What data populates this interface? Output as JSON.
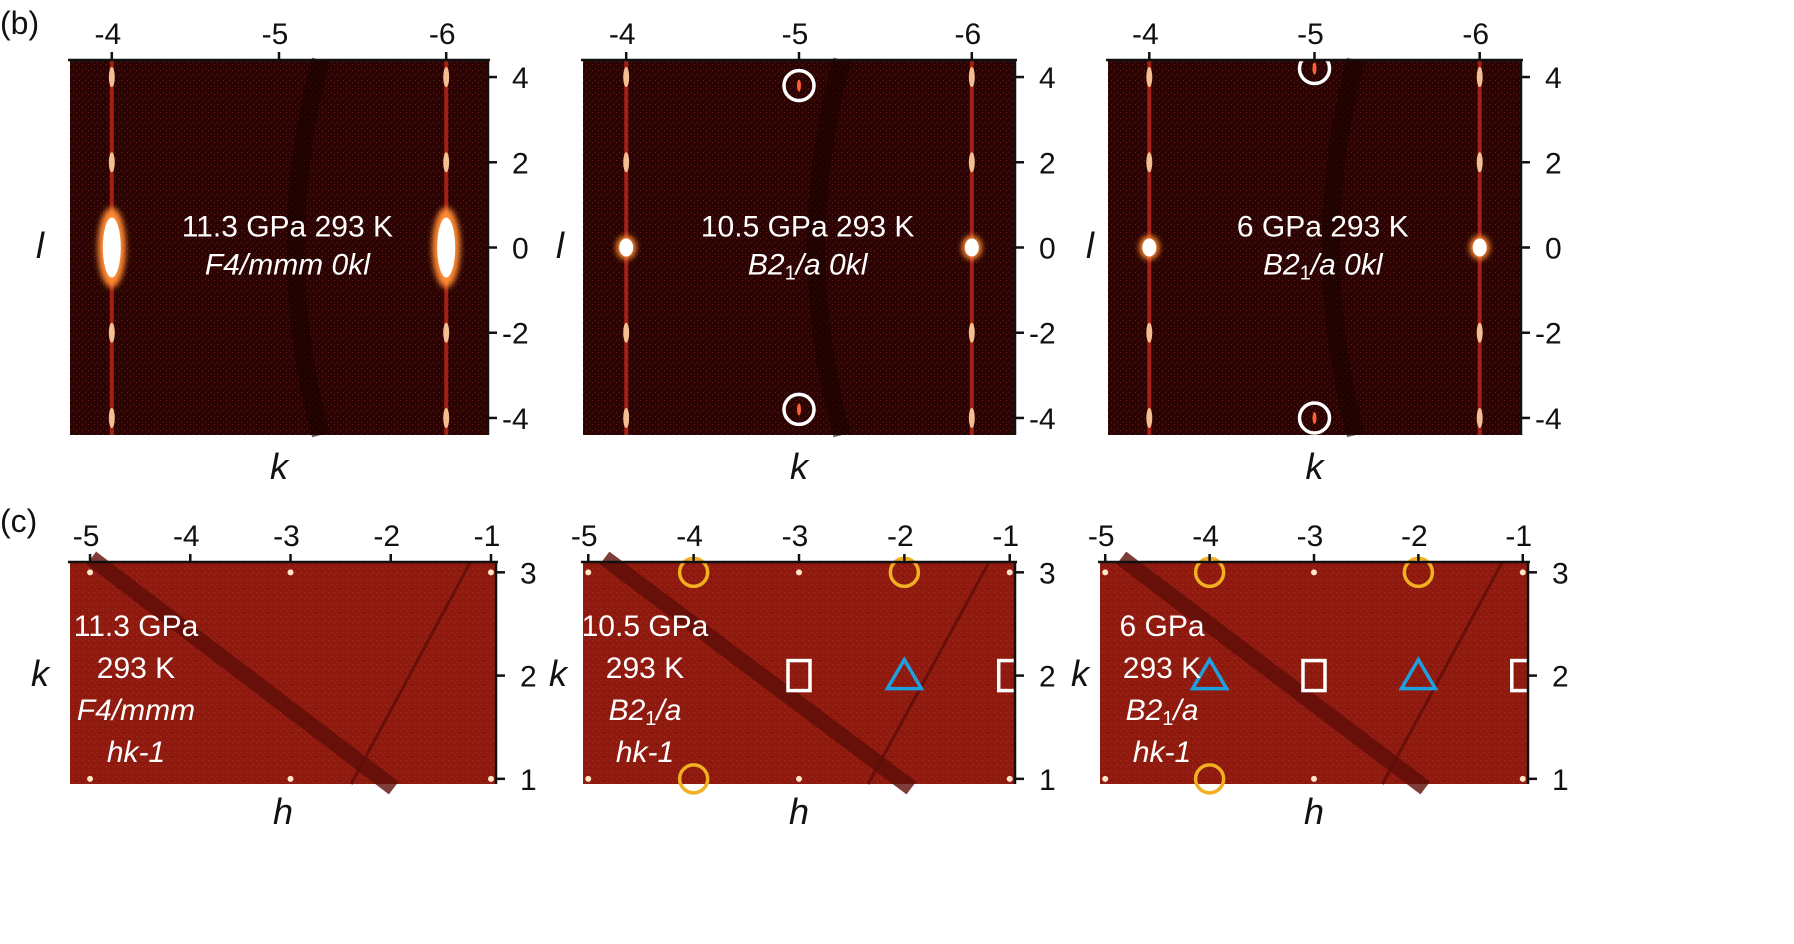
{
  "figure": {
    "panel_b_label": "(b)",
    "panel_c_label": "(c)",
    "colors": {
      "map_dark": "#2a0302",
      "map_red": "#8f1a10",
      "peak": "#ffffff",
      "circle_b": "#ffffff",
      "circle_orange": "#f0b020",
      "triangle_blue": "#1ea0e0",
      "square_white": "#ffffff"
    }
  },
  "chart_data": [
    {
      "type": "heatmap",
      "id": "b1",
      "xlabel": "k",
      "ylabel": "l",
      "show_left_label": true,
      "top_ticks": [
        "-4",
        "-5",
        "-6"
      ],
      "top_tick_values": [
        -4,
        -5,
        -6
      ],
      "xlim": [
        -3.75,
        -6.25
      ],
      "right_ticks": [
        "4",
        "2",
        "0",
        "-2",
        "-4"
      ],
      "right_tick_values": [
        4,
        2,
        0,
        -2,
        -4
      ],
      "ylim": [
        4.4,
        -4.4
      ],
      "annotation": [
        [
          {
            "t": "11.3 GPa 293 K",
            "i": false
          }
        ],
        [
          {
            "t": "F4/mmm 0kl",
            "i": true
          }
        ]
      ],
      "circles": []
    },
    {
      "type": "heatmap",
      "id": "b2",
      "xlabel": "k",
      "ylabel": "l",
      "show_left_label": true,
      "top_ticks": [
        "-4",
        "-5",
        "-6"
      ],
      "top_tick_values": [
        -4,
        -5,
        -6
      ],
      "xlim": [
        -3.75,
        -6.25
      ],
      "right_ticks": [
        "4",
        "2",
        "0",
        "-2",
        "-4"
      ],
      "right_tick_values": [
        4,
        2,
        0,
        -2,
        -4
      ],
      "ylim": [
        4.4,
        -4.4
      ],
      "annotation": [
        [
          {
            "t": "10.5 GPa 293 K",
            "i": false
          }
        ],
        [
          {
            "t": "B2",
            "i": true
          },
          {
            "t": "1",
            "i": false,
            "sub": true
          },
          {
            "t": "/a 0kl",
            "i": true
          }
        ]
      ],
      "circles": [
        {
          "x": -5,
          "y": 3.8
        },
        {
          "x": -5,
          "y": -3.8
        }
      ]
    },
    {
      "type": "heatmap",
      "id": "b3",
      "xlabel": "k",
      "ylabel": "l",
      "show_left_label": true,
      "top_ticks": [
        "-4",
        "-5",
        "-6"
      ],
      "top_tick_values": [
        -4,
        -5,
        -6
      ],
      "xlim": [
        -3.75,
        -6.25
      ],
      "right_ticks": [
        "4",
        "2",
        "0",
        "-2",
        "-4"
      ],
      "right_tick_values": [
        4,
        2,
        0,
        -2,
        -4
      ],
      "ylim": [
        4.4,
        -4.4
      ],
      "annotation": [
        [
          {
            "t": "6 GPa 293 K",
            "i": false
          }
        ],
        [
          {
            "t": "B2",
            "i": true
          },
          {
            "t": "1",
            "i": false,
            "sub": true
          },
          {
            "t": "/a 0kl",
            "i": true
          }
        ]
      ],
      "circles": [
        {
          "x": -5,
          "y": 4.2
        },
        {
          "x": -5,
          "y": -4.0
        }
      ]
    },
    {
      "type": "heatmap",
      "id": "c1",
      "xlabel": "h",
      "ylabel": "k",
      "top_ticks": [
        "-5",
        "-4",
        "-3",
        "-2",
        "-1"
      ],
      "top_tick_values": [
        -5,
        -4,
        -3,
        -2,
        -1
      ],
      "xlim": [
        -5.2,
        -0.95
      ],
      "right_ticks": [
        "3",
        "2",
        "1"
      ],
      "right_tick_values": [
        3,
        2,
        1
      ],
      "ylim": [
        3.1,
        0.95
      ],
      "annotation": [
        [
          {
            "t": "11.3 GPa",
            "i": false
          }
        ],
        [
          {
            "t": "293 K",
            "i": false
          }
        ],
        [
          {
            "t": "F4/mmm",
            "i": true
          }
        ],
        [
          {
            "t": "hk-1",
            "i": true
          }
        ]
      ],
      "peaks": [
        {
          "x": -5,
          "y": 3
        },
        {
          "x": -3,
          "y": 3
        },
        {
          "x": -1,
          "y": 3
        },
        {
          "x": -5,
          "y": 1
        },
        {
          "x": -3,
          "y": 1
        },
        {
          "x": -1,
          "y": 1
        }
      ],
      "circles": [],
      "squares": [],
      "triangles": []
    },
    {
      "type": "heatmap",
      "id": "c2",
      "xlabel": "h",
      "ylabel": "k",
      "top_ticks": [
        "-5",
        "-4",
        "-3",
        "-2",
        "-1"
      ],
      "top_tick_values": [
        -5,
        -4,
        -3,
        -2,
        -1
      ],
      "xlim": [
        -5.05,
        -0.95
      ],
      "right_ticks": [
        "3",
        "2",
        "1"
      ],
      "right_tick_values": [
        3,
        2,
        1
      ],
      "ylim": [
        3.1,
        0.95
      ],
      "annotation": [
        [
          {
            "t": "10.5 GPa",
            "i": false
          }
        ],
        [
          {
            "t": "293 K",
            "i": false
          }
        ],
        [
          {
            "t": "B2",
            "i": true
          },
          {
            "t": "1",
            "i": false,
            "sub": true
          },
          {
            "t": "/a",
            "i": true
          }
        ],
        [
          {
            "t": "hk-1",
            "i": true
          }
        ]
      ],
      "peaks": [
        {
          "x": -5,
          "y": 3
        },
        {
          "x": -3,
          "y": 3
        },
        {
          "x": -1,
          "y": 3
        },
        {
          "x": -5,
          "y": 1
        },
        {
          "x": -3,
          "y": 1
        },
        {
          "x": -1,
          "y": 1
        }
      ],
      "circles": [
        {
          "x": -4,
          "y": 3
        },
        {
          "x": -2,
          "y": 3
        },
        {
          "x": -4,
          "y": 1
        }
      ],
      "squares": [
        {
          "x": -3,
          "y": 2
        },
        {
          "x": -1,
          "y": 2
        }
      ],
      "triangles": [
        {
          "x": -2,
          "y": 2
        }
      ]
    },
    {
      "type": "heatmap",
      "id": "c3",
      "xlabel": "h",
      "ylabel": "k",
      "top_ticks": [
        "-5",
        "-4",
        "-3",
        "-2",
        "-1"
      ],
      "top_tick_values": [
        -5,
        -4,
        -3,
        -2,
        -1
      ],
      "xlim": [
        -5.05,
        -0.95
      ],
      "right_ticks": [
        "3",
        "2",
        "1"
      ],
      "right_tick_values": [
        3,
        2,
        1
      ],
      "ylim": [
        3.1,
        0.95
      ],
      "annotation": [
        [
          {
            "t": "6 GPa",
            "i": false
          }
        ],
        [
          {
            "t": "293 K",
            "i": false
          }
        ],
        [
          {
            "t": "B2",
            "i": true
          },
          {
            "t": "1",
            "i": false,
            "sub": true
          },
          {
            "t": "/a",
            "i": true
          }
        ],
        [
          {
            "t": "hk-1",
            "i": true
          }
        ]
      ],
      "peaks": [
        {
          "x": -5,
          "y": 3
        },
        {
          "x": -3,
          "y": 3
        },
        {
          "x": -1,
          "y": 3
        },
        {
          "x": -5,
          "y": 1
        },
        {
          "x": -3,
          "y": 1
        },
        {
          "x": -1,
          "y": 1
        }
      ],
      "circles": [
        {
          "x": -4,
          "y": 3
        },
        {
          "x": -2,
          "y": 3
        },
        {
          "x": -4,
          "y": 1
        }
      ],
      "squares": [
        {
          "x": -3,
          "y": 2
        },
        {
          "x": -1,
          "y": 2
        }
      ],
      "triangles": [
        {
          "x": -4,
          "y": 2
        },
        {
          "x": -2,
          "y": 2
        }
      ]
    }
  ]
}
